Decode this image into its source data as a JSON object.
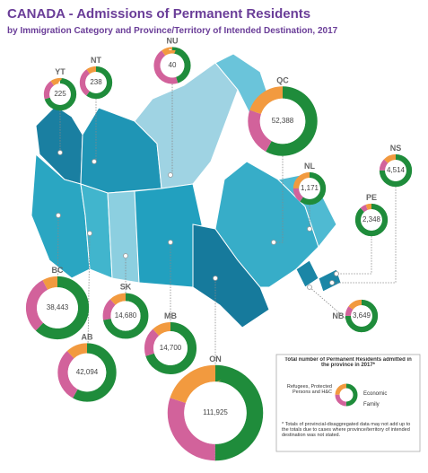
{
  "chart_data": {
    "type": "donut-map",
    "title": "CANADA - Admissions of Permanent Residents",
    "subtitle": "by Immigration Category and Province/Territory of Intended Destination, 2017",
    "categories": [
      {
        "name": "Economic",
        "color": "#1f8c3b"
      },
      {
        "name": "Family",
        "color": "#d2629b"
      },
      {
        "name": "Refugees, Protected Persons and H&C",
        "color": "#f29a3f"
      }
    ],
    "regions": [
      {
        "code": "YT",
        "total": "225",
        "shares": [
          70,
          20,
          10
        ]
      },
      {
        "code": "NT",
        "total": "238",
        "shares": [
          60,
          30,
          10
        ]
      },
      {
        "code": "NU",
        "total": "40",
        "shares": [
          45,
          45,
          10
        ]
      },
      {
        "code": "QC",
        "total": "52,388",
        "shares": [
          58,
          22,
          20
        ]
      },
      {
        "code": "NL",
        "total": "1,171",
        "shares": [
          60,
          15,
          25
        ]
      },
      {
        "code": "NS",
        "total": "4,514",
        "shares": [
          75,
          12,
          13
        ]
      },
      {
        "code": "PE",
        "total": "2,348",
        "shares": [
          88,
          6,
          6
        ]
      },
      {
        "code": "NB",
        "total": "3,649",
        "shares": [
          75,
          10,
          15
        ]
      },
      {
        "code": "ON",
        "total": "111,925",
        "shares": [
          50,
          30,
          20
        ]
      },
      {
        "code": "MB",
        "total": "14,700",
        "shares": [
          70,
          18,
          12
        ]
      },
      {
        "code": "SK",
        "total": "14,680",
        "shares": [
          72,
          16,
          12
        ]
      },
      {
        "code": "AB",
        "total": "42,094",
        "shares": [
          58,
          30,
          12
        ]
      },
      {
        "code": "BC",
        "total": "38,443",
        "shares": [
          62,
          30,
          8
        ]
      }
    ],
    "legend": {
      "title": "Total number of Permanent Residents admitted in the province in 2017*",
      "note": "* Totals of provincial-disaggregated data may not add up to the totals due to cases where province/territory of intended destination was not stated."
    }
  }
}
